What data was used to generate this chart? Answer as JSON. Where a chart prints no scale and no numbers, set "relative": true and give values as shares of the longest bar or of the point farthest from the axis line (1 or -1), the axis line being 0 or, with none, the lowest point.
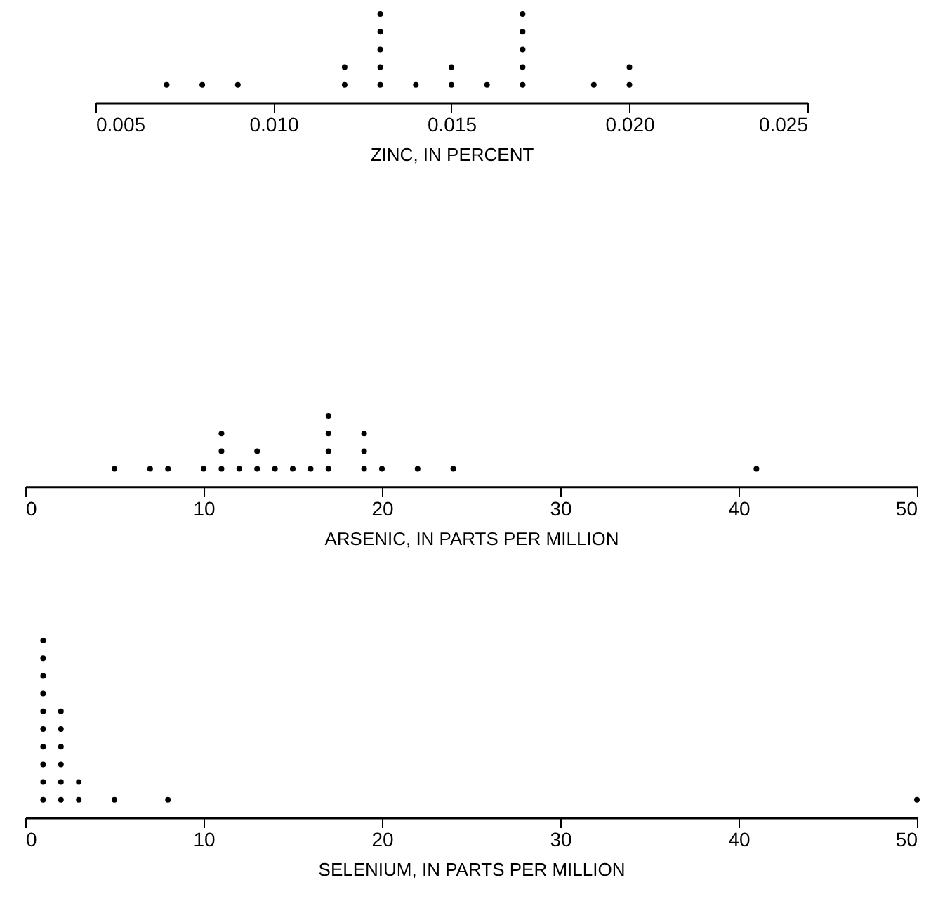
{
  "chart_data": [
    {
      "type": "scatter",
      "xlabel": "ZINC, IN PERCENT",
      "relative": true,
      "marker": "circle",
      "color": "#000000",
      "x": [
        0.007,
        0.008,
        0.009,
        0.012,
        0.012,
        0.013,
        0.013,
        0.013,
        0.013,
        0.013,
        0.014,
        0.015,
        0.015,
        0.016,
        0.017,
        0.017,
        0.017,
        0.017,
        0.017,
        0.019,
        0.02,
        0.02
      ],
      "values": [
        0.2,
        0.2,
        0.2,
        0.2,
        0.4,
        0.2,
        0.4,
        0.6,
        0.8,
        1,
        0.2,
        0.2,
        0.4,
        0.2,
        0.2,
        0.4,
        0.6,
        0.8,
        1,
        0.2,
        0.2,
        0.4
      ],
      "xlim": [
        0.005,
        0.025
      ],
      "xticks": [
        0.005,
        {
          "value": 0.01,
          "label": "0.010"
        },
        0.015,
        {
          "value": 0.02,
          "label": "0.020"
        },
        0.025
      ]
    },
    {
      "type": "scatter",
      "xlabel": "ARSENIC, IN PARTS PER MILLION",
      "relative": true,
      "marker": "circle",
      "color": "#000000",
      "x": [
        5,
        7,
        8,
        10,
        11,
        11,
        11,
        12,
        13,
        13,
        14,
        15,
        16,
        17,
        17,
        17,
        17,
        19,
        19,
        19,
        20,
        22,
        24,
        41
      ],
      "values": [
        0.25,
        0.25,
        0.25,
        0.25,
        0.25,
        0.5,
        0.75,
        0.25,
        0.25,
        0.5,
        0.25,
        0.25,
        0.25,
        0.25,
        0.5,
        0.75,
        1,
        0.25,
        0.5,
        0.75,
        0.25,
        0.25,
        0.25,
        0.25
      ],
      "xlim": [
        0,
        50
      ],
      "xticks": [
        0,
        10,
        20,
        30,
        40,
        50
      ]
    },
    {
      "type": "scatter",
      "xlabel": "SELENIUM, IN PARTS PER MILLION",
      "relative": true,
      "marker": "circle",
      "color": "#000000",
      "x": [
        1,
        1,
        1,
        1,
        1,
        1,
        1,
        1,
        1,
        1,
        2,
        2,
        2,
        2,
        2,
        2,
        3,
        3,
        5,
        8,
        50
      ],
      "values": [
        0.1,
        0.2,
        0.3,
        0.4,
        0.5,
        0.6,
        0.7,
        0.8,
        0.9,
        1,
        0.1,
        0.2,
        0.3,
        0.4,
        0.5,
        0.6,
        0.1,
        0.2,
        0.1,
        0.1,
        0.1
      ],
      "xlim": [
        0,
        50
      ],
      "xticks": [
        0,
        10,
        20,
        30,
        40,
        50
      ]
    }
  ]
}
